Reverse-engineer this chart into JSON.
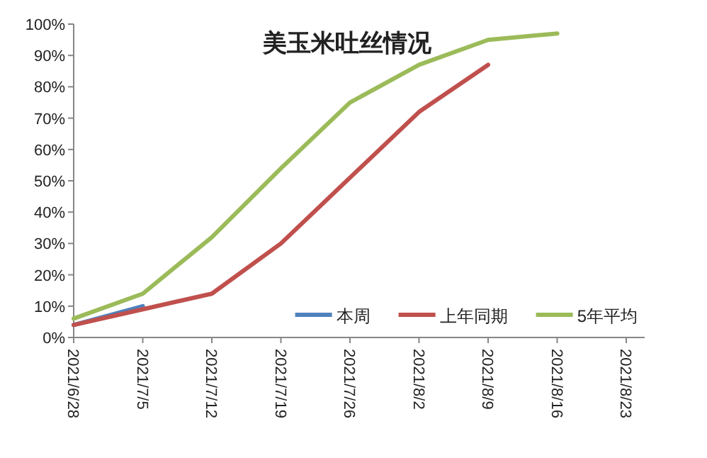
{
  "chart_data": {
    "type": "line",
    "title": "美玉米吐丝情况",
    "categories": [
      "2021/6/28",
      "2021/7/5",
      "2021/7/12",
      "2021/7/19",
      "2021/7/26",
      "2021/8/2",
      "2021/8/9",
      "2021/8/16",
      "2021/8/23"
    ],
    "series": [
      {
        "name": "本周",
        "color": "#4f81bd",
        "values": [
          4,
          10,
          null,
          null,
          null,
          null,
          null,
          null,
          null
        ]
      },
      {
        "name": "上年同期",
        "color": "#c0504d",
        "values": [
          4,
          9,
          14,
          30,
          51,
          72,
          87,
          null,
          null
        ]
      },
      {
        "name": "5年平均",
        "color": "#9bbb59",
        "values": [
          6,
          14,
          32,
          54,
          75,
          87,
          95,
          97,
          null
        ]
      }
    ],
    "ylim": [
      0,
      100
    ],
    "yticks": [
      {
        "value": 0,
        "label": "0%"
      },
      {
        "value": 10,
        "label": "10%"
      },
      {
        "value": 20,
        "label": "20%"
      },
      {
        "value": 30,
        "label": "30%"
      },
      {
        "value": 40,
        "label": "40%"
      },
      {
        "value": 50,
        "label": "50%"
      },
      {
        "value": 60,
        "label": "60%"
      },
      {
        "value": 70,
        "label": "70%"
      },
      {
        "value": 80,
        "label": "80%"
      },
      {
        "value": 90,
        "label": "90%"
      },
      {
        "value": 100,
        "label": "100%"
      }
    ],
    "grid": false,
    "legend": "bottom right",
    "marker": "none",
    "line_style": "solid"
  }
}
